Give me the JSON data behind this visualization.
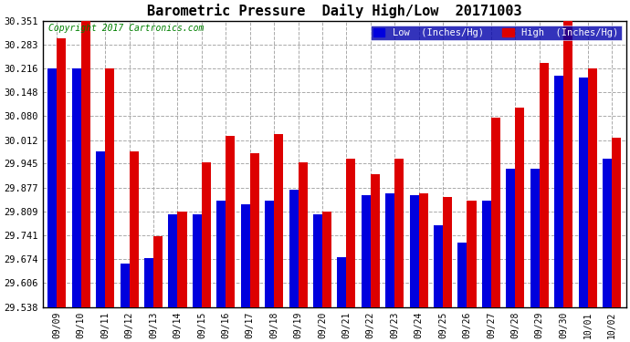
{
  "title": "Barometric Pressure  Daily High/Low  20171003",
  "copyright": "Copyright 2017 Cartronics.com",
  "legend_low": "Low  (Inches/Hg)",
  "legend_high": "High  (Inches/Hg)",
  "categories": [
    "09/09",
    "09/10",
    "09/11",
    "09/12",
    "09/13",
    "09/14",
    "09/15",
    "09/16",
    "09/17",
    "09/18",
    "09/19",
    "09/20",
    "09/21",
    "09/22",
    "09/23",
    "09/24",
    "09/25",
    "09/26",
    "09/27",
    "09/28",
    "09/29",
    "09/30",
    "10/01",
    "10/02"
  ],
  "low_values": [
    30.215,
    30.215,
    29.98,
    29.66,
    29.678,
    29.8,
    29.8,
    29.84,
    29.83,
    29.84,
    29.87,
    29.8,
    29.68,
    29.855,
    29.86,
    29.855,
    29.77,
    29.72,
    29.84,
    29.93,
    29.93,
    30.195,
    30.19,
    29.96
  ],
  "high_values": [
    30.3,
    30.355,
    30.215,
    29.98,
    29.74,
    29.81,
    29.95,
    30.025,
    29.975,
    30.03,
    29.95,
    29.81,
    29.96,
    29.915,
    29.96,
    29.86,
    29.85,
    29.84,
    30.075,
    30.105,
    30.23,
    30.355,
    30.215,
    30.02
  ],
  "ylim_min": 29.538,
  "ylim_max": 30.351,
  "yticks": [
    29.538,
    29.606,
    29.674,
    29.741,
    29.809,
    29.877,
    29.945,
    30.012,
    30.08,
    30.148,
    30.216,
    30.283,
    30.351
  ],
  "low_color": "#0000dd",
  "high_color": "#dd0000",
  "background_color": "#ffffff",
  "plot_bg_color": "#ffffff",
  "grid_color": "#aaaaaa",
  "title_fontsize": 11,
  "copyright_fontsize": 7,
  "bar_width": 0.38
}
